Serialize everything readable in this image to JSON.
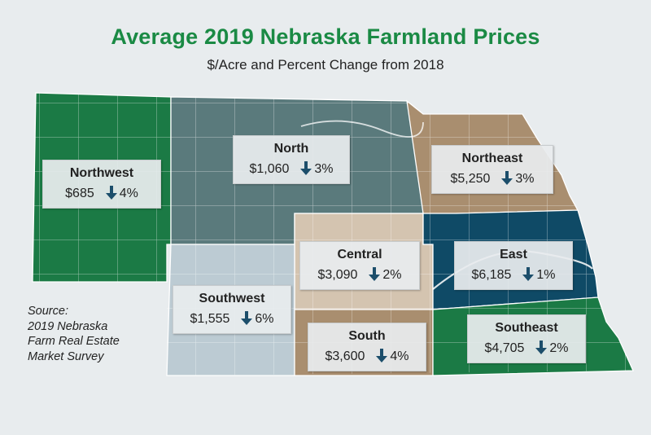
{
  "title": "Average 2019 Nebraska Farmland Prices",
  "subtitle": "$/Acre and Percent Change from 2018",
  "colors": {
    "northwest": "#1b7a45",
    "north": "#5a7a7c",
    "northeast": "#a98e6f",
    "central": "#d4c4b0",
    "east": "#0f4a66",
    "southwest": "#bccbd3",
    "south": "#a98e6f",
    "southeast": "#1b7a45",
    "arrow": "#1c4e6b"
  },
  "regions": [
    {
      "key": "northwest",
      "name": "Northwest",
      "price": "$685",
      "change": "4%",
      "direction": "down"
    },
    {
      "key": "north",
      "name": "North",
      "price": "$1,060",
      "change": "3%",
      "direction": "down"
    },
    {
      "key": "northeast",
      "name": "Northeast",
      "price": "$5,250",
      "change": "3%",
      "direction": "down"
    },
    {
      "key": "central",
      "name": "Central",
      "price": "$3,090",
      "change": "2%",
      "direction": "down"
    },
    {
      "key": "east",
      "name": "East",
      "price": "$6,185",
      "change": "1%",
      "direction": "down"
    },
    {
      "key": "southwest",
      "name": "Southwest",
      "price": "$1,555",
      "change": "6%",
      "direction": "down"
    },
    {
      "key": "south",
      "name": "South",
      "price": "$3,600",
      "change": "4%",
      "direction": "down"
    },
    {
      "key": "southeast",
      "name": "Southeast",
      "price": "$4,705",
      "change": "2%",
      "direction": "down"
    }
  ],
  "source_lines": [
    "Source:",
    "2019 Nebraska",
    "Farm Real Estate",
    "Market Survey"
  ]
}
